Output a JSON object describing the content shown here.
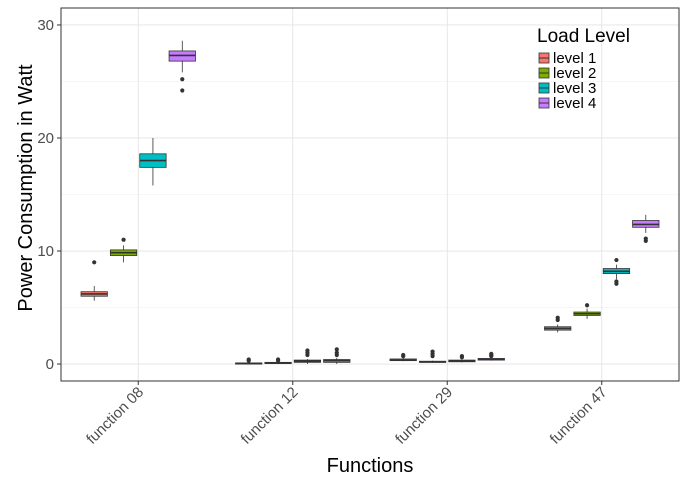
{
  "chart_data": {
    "type": "box",
    "xlabel": "Functions",
    "ylabel": "Power Consumption in Watt",
    "ylim": [
      -1.5,
      31.5
    ],
    "yticks": [
      0,
      10,
      20,
      30
    ],
    "grid": true,
    "legend_title": "Load Level",
    "legend_position": "top-right",
    "categories": [
      "function 08",
      "function 12",
      "function 29",
      "function 47"
    ],
    "series": [
      {
        "name": "level 1",
        "color": "#f8766d",
        "boxes": [
          {
            "min": 5.6,
            "q1": 6.0,
            "median": 6.2,
            "q3": 6.4,
            "max": 6.9,
            "outliers": [
              9.0
            ]
          },
          {
            "min": 0.0,
            "q1": 0.0,
            "median": 0.05,
            "q3": 0.1,
            "max": 0.15,
            "outliers": [
              0.3,
              0.4
            ]
          },
          {
            "min": 0.25,
            "q1": 0.3,
            "median": 0.35,
            "q3": 0.45,
            "max": 0.55,
            "outliers": [
              0.7,
              0.8
            ]
          },
          {
            "min": 2.8,
            "q1": 3.0,
            "median": 3.15,
            "q3": 3.3,
            "max": 3.5,
            "outliers": [
              3.9,
              4.1
            ]
          }
        ]
      },
      {
        "name": "level 2",
        "color": "#7cae00",
        "boxes": [
          {
            "min": 9.0,
            "q1": 9.6,
            "median": 9.85,
            "q3": 10.1,
            "max": 10.5,
            "outliers": [
              11.0
            ]
          },
          {
            "min": 0.0,
            "q1": 0.05,
            "median": 0.1,
            "q3": 0.15,
            "max": 0.2,
            "outliers": [
              0.3,
              0.4
            ]
          },
          {
            "min": 0.1,
            "q1": 0.15,
            "median": 0.2,
            "q3": 0.25,
            "max": 0.3,
            "outliers": [
              0.7,
              0.9,
              1.1
            ]
          },
          {
            "min": 4.0,
            "q1": 4.3,
            "median": 4.45,
            "q3": 4.6,
            "max": 4.9,
            "outliers": [
              5.2
            ]
          }
        ]
      },
      {
        "name": "level 3",
        "color": "#00bfc4",
        "boxes": [
          {
            "min": 15.8,
            "q1": 17.4,
            "median": 18.0,
            "q3": 18.6,
            "max": 20.0,
            "outliers": []
          },
          {
            "min": 0.0,
            "q1": 0.15,
            "median": 0.25,
            "q3": 0.35,
            "max": 0.45,
            "outliers": [
              0.8,
              1.0,
              1.2
            ]
          },
          {
            "min": 0.15,
            "q1": 0.2,
            "median": 0.25,
            "q3": 0.35,
            "max": 0.4,
            "outliers": [
              0.6,
              0.7
            ]
          },
          {
            "min": 7.5,
            "q1": 8.0,
            "median": 8.2,
            "q3": 8.45,
            "max": 8.8,
            "outliers": [
              7.1,
              7.3,
              9.2
            ]
          }
        ]
      },
      {
        "name": "level 4",
        "color": "#c77cff",
        "boxes": [
          {
            "min": 25.8,
            "q1": 26.8,
            "median": 27.3,
            "q3": 27.7,
            "max": 28.6,
            "outliers": [
              25.2,
              24.2
            ]
          },
          {
            "min": 0.0,
            "q1": 0.15,
            "median": 0.3,
            "q3": 0.4,
            "max": 0.55,
            "outliers": [
              0.8,
              1.0,
              1.3
            ]
          },
          {
            "min": 0.3,
            "q1": 0.35,
            "median": 0.4,
            "q3": 0.5,
            "max": 0.55,
            "outliers": [
              0.7,
              0.8,
              0.9
            ]
          },
          {
            "min": 11.6,
            "q1": 12.1,
            "median": 12.35,
            "q3": 12.7,
            "max": 13.2,
            "outliers": [
              10.9,
              11.1
            ]
          }
        ]
      }
    ]
  }
}
